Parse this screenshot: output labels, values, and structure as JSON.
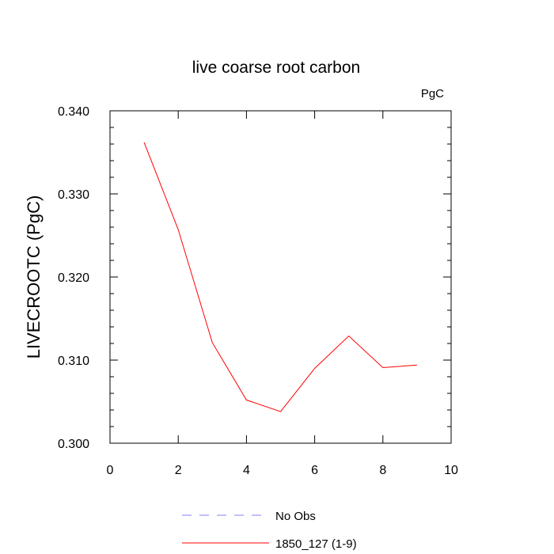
{
  "chart_data": {
    "type": "line",
    "title": "live coarse root carbon",
    "units_label": "PgC",
    "ylabel": "LIVECROOTC  (PgC)",
    "xlabel": "",
    "xlim": [
      0,
      10
    ],
    "ylim": [
      0.3,
      0.34
    ],
    "x_ticks": [
      0,
      2,
      4,
      6,
      8,
      10
    ],
    "x_tick_labels": [
      "0",
      "2",
      "4",
      "6",
      "8",
      "10"
    ],
    "y_ticks": [
      0.3,
      0.31,
      0.32,
      0.33,
      0.34
    ],
    "y_tick_labels": [
      "0.300",
      "0.310",
      "0.320",
      "0.330",
      "0.340"
    ],
    "grid": false,
    "legend_position": "bottom",
    "series": [
      {
        "name": "1850_127 (1-9)",
        "color": "#ff0000",
        "dash": "solid",
        "x": [
          1,
          2,
          3,
          4,
          5,
          6,
          7,
          8,
          9
        ],
        "y": [
          0.3362,
          0.3257,
          0.3121,
          0.3052,
          0.3038,
          0.309,
          0.3129,
          0.3091,
          0.3094
        ]
      }
    ],
    "legend": [
      {
        "name": "No Obs",
        "color": "#8080ff",
        "dash": "dashed"
      },
      {
        "name": "1850_127 (1-9)",
        "color": "#ff0000",
        "dash": "solid"
      }
    ]
  }
}
